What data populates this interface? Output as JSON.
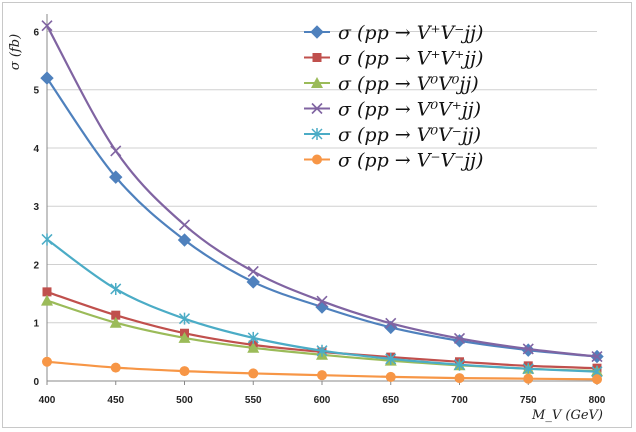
{
  "chart_data": {
    "type": "line",
    "x": [
      400,
      450,
      500,
      550,
      600,
      650,
      700,
      750,
      800
    ],
    "xlim": [
      400,
      800
    ],
    "ylim": [
      0,
      6.3
    ],
    "x_ticks": [
      "400",
      "450",
      "500",
      "550",
      "600",
      "650",
      "700",
      "750",
      "800"
    ],
    "y_ticks": [
      "0",
      "1",
      "2",
      "3",
      "4",
      "5",
      "6"
    ],
    "xlabel": "M_V (GeV)",
    "ylabel": "σ (fb)",
    "grid": "horizontal",
    "legend_position": "top-right",
    "series": [
      {
        "name": "σ (pp → V⁺V⁻jj)",
        "color": "#4F81BD",
        "marker": "diamond",
        "values": [
          5.2,
          3.5,
          2.42,
          1.7,
          1.27,
          0.92,
          0.69,
          0.53,
          0.42
        ]
      },
      {
        "name": "σ (pp → V⁺V⁺jj)",
        "color": "#C0504D",
        "marker": "square",
        "values": [
          1.53,
          1.13,
          0.82,
          0.62,
          0.5,
          0.41,
          0.33,
          0.26,
          0.22
        ]
      },
      {
        "name": "σ (pp → V⁰V⁰jj)",
        "color": "#9BBB59",
        "marker": "triangle",
        "values": [
          1.38,
          1.0,
          0.74,
          0.57,
          0.45,
          0.35,
          0.27,
          0.21,
          0.17
        ]
      },
      {
        "name": "σ (pp → V⁰V⁺jj)",
        "color": "#8064A2",
        "marker": "x",
        "values": [
          6.1,
          3.95,
          2.68,
          1.88,
          1.37,
          0.99,
          0.73,
          0.55,
          0.42
        ]
      },
      {
        "name": "σ (pp → V⁰V⁻jj)",
        "color": "#4BACC6",
        "marker": "star",
        "values": [
          2.43,
          1.58,
          1.07,
          0.74,
          0.52,
          0.38,
          0.28,
          0.21,
          0.16
        ]
      },
      {
        "name": "σ (pp → V⁻V⁻jj)",
        "color": "#F79646",
        "marker": "circle",
        "values": [
          0.33,
          0.23,
          0.17,
          0.13,
          0.1,
          0.07,
          0.05,
          0.04,
          0.03
        ]
      }
    ]
  }
}
